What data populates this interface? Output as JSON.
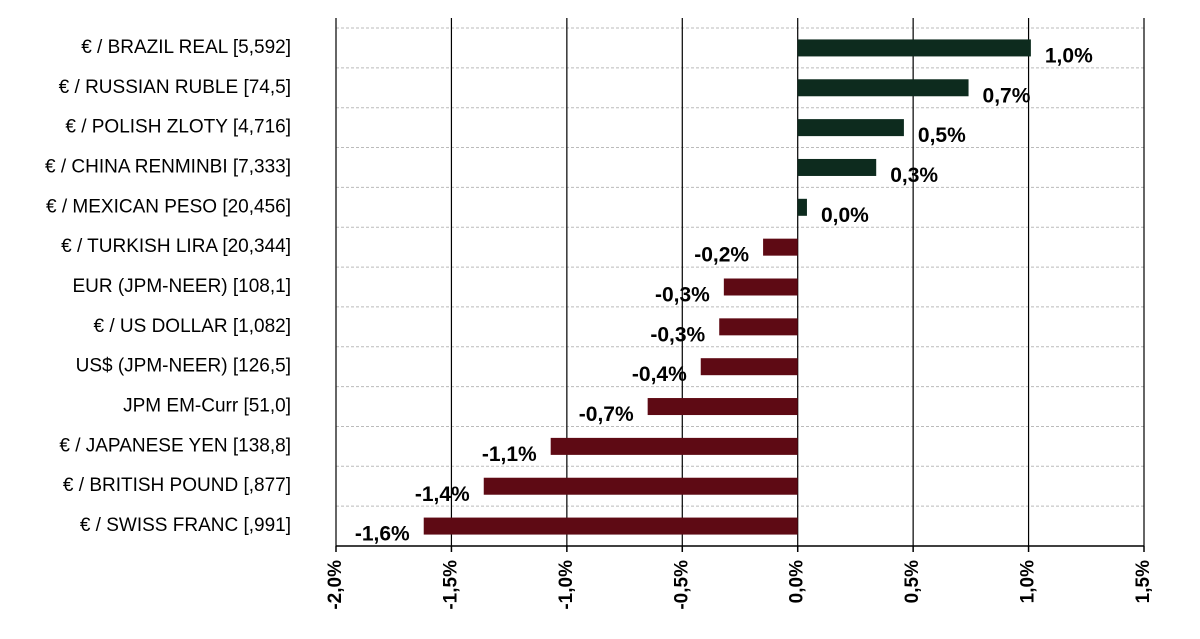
{
  "chart_data": {
    "type": "bar",
    "orientation": "horizontal",
    "categories": [
      "€ / BRAZIL REAL [5,592]",
      "€ / RUSSIAN RUBLE [74,5]",
      "€ / POLISH ZLOTY [4,716]",
      "€ / CHINA RENMINBI [7,333]",
      "€ / MEXICAN PESO [20,456]",
      "€ / TURKISH LIRA [20,344]",
      "EUR (JPM-NEER) [108,1]",
      "€ / US DOLLAR [1,082]",
      "US$ (JPM-NEER) [126,5]",
      "JPM EM-Curr [51,0]",
      "€ / JAPANESE YEN [138,8]",
      "€ / BRITISH POUND [,877]",
      "€ / SWISS FRANC [,991]"
    ],
    "values": [
      1.01,
      0.74,
      0.46,
      0.34,
      0.04,
      -0.15,
      -0.32,
      -0.34,
      -0.42,
      -0.65,
      -1.07,
      -1.36,
      -1.62
    ],
    "value_labels": [
      "1,0%",
      "0,7%",
      "0,5%",
      "0,3%",
      "0,0%",
      "-0,2%",
      "-0,3%",
      "-0,3%",
      "-0,4%",
      "-0,7%",
      "-1,1%",
      "-1,4%",
      "-1,6%"
    ],
    "xlim": [
      -2.0,
      1.5
    ],
    "xticks": [
      -2.0,
      -1.5,
      -1.0,
      -0.5,
      0.0,
      0.5,
      1.0,
      1.5
    ],
    "xtick_labels": [
      "-2,0%",
      "-1,5%",
      "-1,0%",
      "-0,5%",
      "0,0%",
      "0,5%",
      "1,0%",
      "1,5%"
    ],
    "title": "",
    "xlabel": "",
    "ylabel": "",
    "grid": true,
    "legend": "none",
    "colors": {
      "positive": "#0d2b1e",
      "negative": "#5e0a14",
      "gridline": "#bbbbbb",
      "axis": "#000000"
    }
  }
}
